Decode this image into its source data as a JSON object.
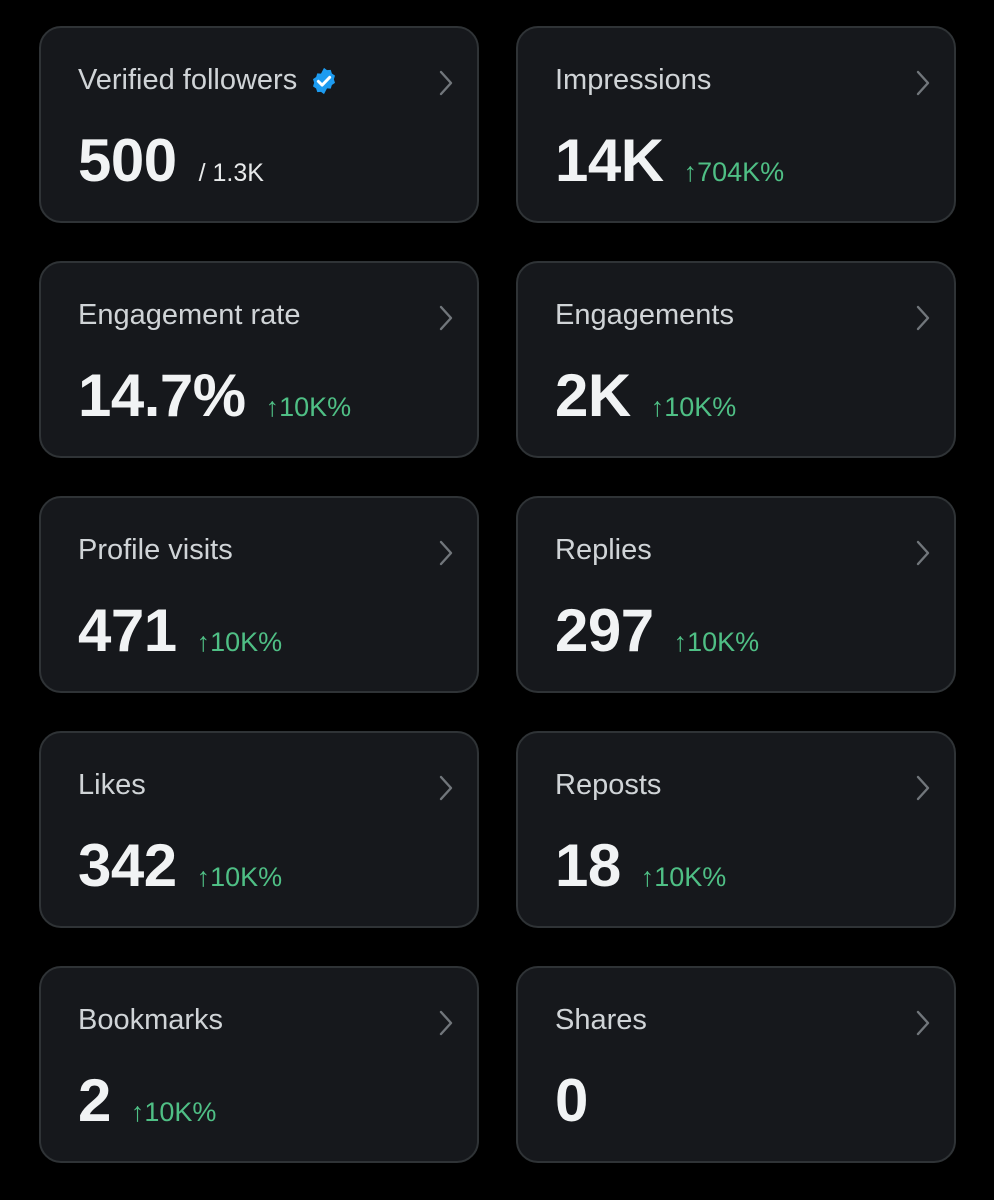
{
  "cards": [
    {
      "label": "Verified followers",
      "value": "500",
      "secondary": "/ 1.3K"
    },
    {
      "label": "Impressions",
      "value": "14K",
      "change": "↑704K%"
    },
    {
      "label": "Engagement rate",
      "value": "14.7%",
      "change": "↑10K%"
    },
    {
      "label": "Engagements",
      "value": "2K",
      "change": "↑10K%"
    },
    {
      "label": "Profile visits",
      "value": "471",
      "change": "↑10K%"
    },
    {
      "label": "Replies",
      "value": "297",
      "change": "↑10K%"
    },
    {
      "label": "Likes",
      "value": "342",
      "change": "↑10K%"
    },
    {
      "label": "Reposts",
      "value": "18",
      "change": "↑10K%"
    },
    {
      "label": "Bookmarks",
      "value": "2",
      "change": "↑10K%"
    },
    {
      "label": "Shares",
      "value": "0"
    }
  ]
}
